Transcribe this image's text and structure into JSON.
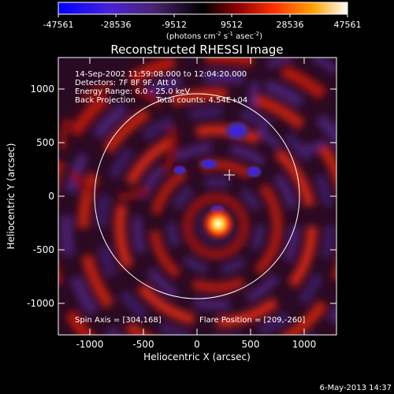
{
  "colorbar": {
    "ticks": [
      "-47561",
      "-28536",
      "-9512",
      "9512",
      "28536",
      "47561"
    ],
    "unit_prefix": "(photons cm",
    "unit_sup1": "-2",
    "unit_mid1": " s",
    "unit_sup2": "-1",
    "unit_mid2": " asec",
    "unit_sup3": "-2",
    "unit_suffix": ")"
  },
  "chart_data": {
    "type": "heatmap",
    "title": "Reconstructed RHESSI Image",
    "xlabel": "Heliocentric X (arcsec)",
    "ylabel": "Heliocentric Y (arcsec)",
    "xlim": [
      -1300,
      1300
    ],
    "ylim": [
      -1300,
      1300
    ],
    "xticks": [
      -1000,
      -500,
      0,
      500,
      1000
    ],
    "yticks": [
      -1000,
      -500,
      0,
      500,
      1000
    ],
    "value_range": [
      -47561,
      47561
    ],
    "solar_limb_center": [
      0,
      0
    ],
    "solar_limb_radius": 950,
    "spin_axis": [
      304,
      168
    ],
    "flare_position": [
      209,
      -260
    ],
    "annotations": {
      "line1": "14-Sep-2002 11:59:08.000 to 12:04:20.000",
      "line2": "Detectors: 7F 8F 9F, Att 0",
      "line3": "Energy Range: 6.0 - 25.0 keV",
      "line4a": "Back Projection",
      "line4b": "Total counts: 4.54E+04",
      "spin_axis_label": "Spin Axis = [304,168]",
      "flare_position_label": "Flare Position = [209,-260]"
    }
  },
  "footer": {
    "date": "6-May-2013 14:37"
  }
}
